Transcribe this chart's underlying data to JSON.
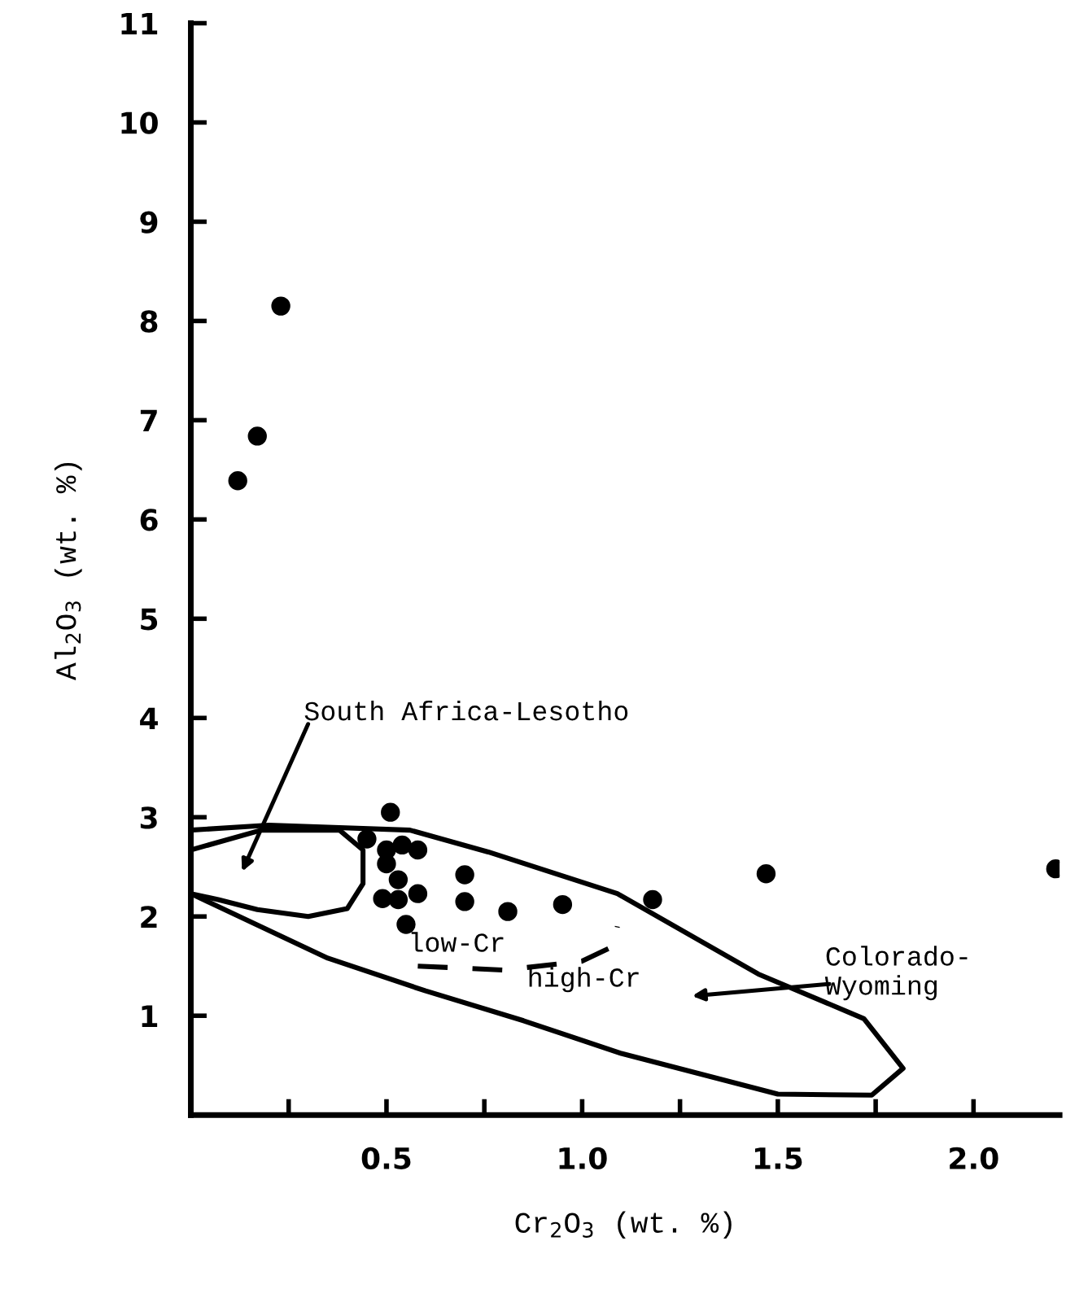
{
  "chart_data": {
    "type": "scatter",
    "xlabel": "Cr$_{2}$O$_{3}$ (wt. %)",
    "ylabel": "Al$_{2}$O$_{3}$ (wt. %)",
    "xlim": [
      0,
      2.22
    ],
    "ylim": [
      0,
      11
    ],
    "xticks": [
      {
        "value": 0.25,
        "label": null
      },
      0.5,
      {
        "value": 0.75,
        "label": null
      },
      {
        "value": 1.0,
        "label": "1.0"
      },
      {
        "value": 1.25,
        "label": null
      },
      1.5,
      {
        "value": 1.75,
        "label": null
      },
      {
        "value": 2.0,
        "label": "2.0"
      }
    ],
    "yticks": [
      1,
      2,
      3,
      4,
      5,
      6,
      7,
      8,
      9,
      10,
      11
    ],
    "grid": false,
    "legend": false,
    "series": [
      {
        "color": "#000000",
        "marker": "circle",
        "x": [
          0.12,
          0.17,
          0.23,
          0.51,
          0.45,
          0.5,
          0.54,
          0.58,
          0.5,
          0.53,
          0.49,
          0.53,
          0.58,
          0.55,
          0.7,
          0.7,
          0.81,
          0.95,
          1.18,
          1.47,
          2.21
        ],
        "values": [
          6.39,
          6.84,
          8.15,
          3.05,
          2.78,
          2.67,
          2.72,
          2.67,
          2.53,
          2.37,
          2.18,
          2.17,
          2.23,
          1.92,
          2.42,
          2.15,
          2.05,
          2.12,
          2.17,
          2.43,
          2.48
        ]
      },
      {
        "type": "line",
        "color": "#000000",
        "line_style": "solid",
        "x": [
          0,
          0.2,
          0.56,
          0.76,
          1.09,
          1.45,
          1.72,
          1.82,
          1.74,
          1.5,
          1.1,
          0.85,
          0.6,
          0.35,
          0
        ],
        "values": [
          2.87,
          2.92,
          2.87,
          2.65,
          2.23,
          1.42,
          0.97,
          0.47,
          0.2,
          0.21,
          0.62,
          0.95,
          1.25,
          1.58,
          2.23
        ]
      },
      {
        "type": "line",
        "color": "#000000",
        "line_style": "solid",
        "x": [
          0,
          0.18,
          0.38,
          0.44,
          0.44,
          0.4,
          0.3,
          0.17,
          0.07,
          0
        ],
        "values": [
          2.67,
          2.87,
          2.87,
          2.67,
          2.33,
          2.08,
          2.0,
          2.07,
          2.17,
          2.23
        ]
      },
      {
        "type": "line",
        "color": "#000000",
        "line_style": "dashed",
        "x": [
          0.58,
          0.8,
          1.0,
          1.08,
          1.09
        ],
        "values": [
          1.5,
          1.46,
          1.55,
          1.7,
          1.9
        ]
      }
    ],
    "annotations": [
      "South Africa-Lesotho",
      "Colorado-\nWyoming",
      "low-Cr",
      "high-Cr"
    ]
  }
}
